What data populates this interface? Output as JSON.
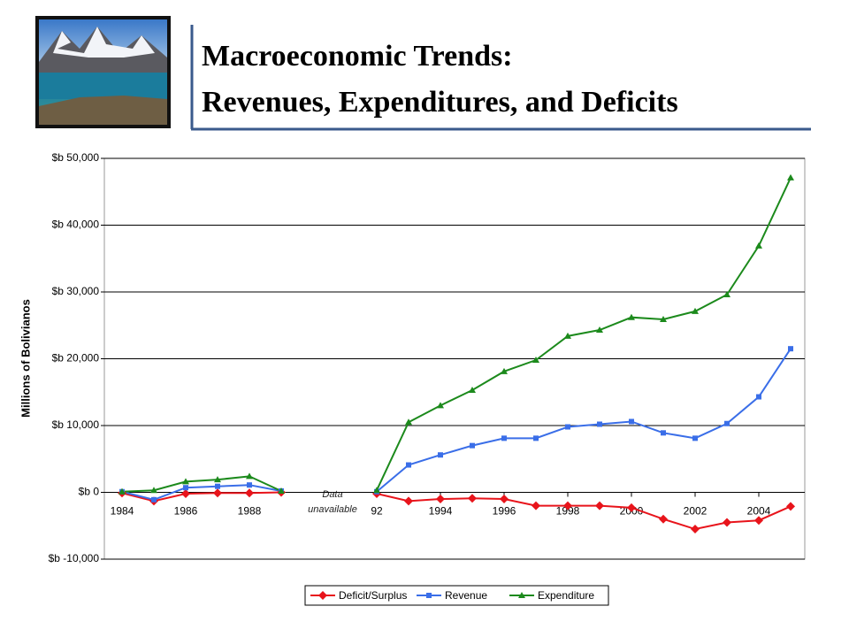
{
  "title_lines": [
    "Macroeconomic Trends:",
    "Revenues, Expenditures, and Deficits"
  ],
  "chart_data": {
    "type": "line",
    "y_label": "Millions of Bolivianos",
    "annotation_lines": [
      "Data",
      "unavailable"
    ],
    "categories": [
      "1984",
      null,
      "1986",
      null,
      "1988",
      null,
      null,
      null,
      "92",
      null,
      "1994",
      null,
      "1996",
      null,
      "1998",
      null,
      "2000",
      null,
      "2002",
      null,
      "2004",
      null
    ],
    "series": [
      {
        "name": "Deficit/Surplus",
        "color": "#e8141b",
        "marker": "diamond",
        "values": [
          -100,
          -1300,
          -200,
          -100,
          -100,
          0,
          null,
          null,
          -200,
          -1300,
          -1000,
          -900,
          -1000,
          -2000,
          -2000,
          -2000,
          -2300,
          -4000,
          -5500,
          -4500,
          -4200,
          -2100
        ]
      },
      {
        "name": "Revenue",
        "color": "#3a6ee8",
        "marker": "square",
        "values": [
          100,
          -1100,
          700,
          900,
          1100,
          200,
          null,
          null,
          100,
          4100,
          5600,
          7000,
          8100,
          8100,
          9800,
          10200,
          10600,
          8900,
          8100,
          10300,
          14300,
          21500
        ]
      },
      {
        "name": "Expenditure",
        "color": "#1c8a1c",
        "marker": "triangle",
        "values": [
          100,
          300,
          1600,
          1900,
          2400,
          200,
          null,
          null,
          300,
          10500,
          13000,
          15300,
          18100,
          19800,
          23400,
          24300,
          26200,
          25900,
          27100,
          29600,
          36900,
          47100
        ]
      }
    ],
    "ylim": [
      -10000,
      50000
    ],
    "yticks": [
      {
        "value": -10000,
        "label": "$b -10,000"
      },
      {
        "value": 0,
        "label": "$b 0"
      },
      {
        "value": 10000,
        "label": "$b 10,000"
      },
      {
        "value": 20000,
        "label": "$b 20,000"
      },
      {
        "value": 30000,
        "label": "$b 30,000"
      },
      {
        "value": 40000,
        "label": "$b 40,000"
      },
      {
        "value": 50000,
        "label": "$b 50,000"
      }
    ],
    "grid": true,
    "negative_tick_color": "#cc0000",
    "legend": "bottom"
  }
}
